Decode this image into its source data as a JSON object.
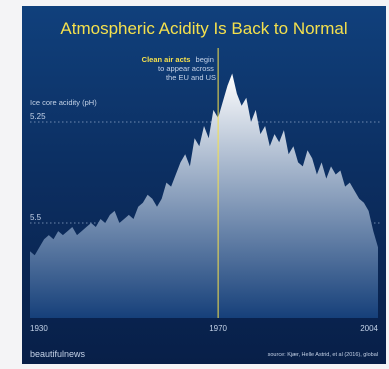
{
  "colors": {
    "title": "#f4e04d",
    "highlight": "#f4e04d",
    "text": "#c5d3e8",
    "gridline": "#8fa6c8",
    "marker_line": "#f4e04d",
    "area_top": "#ffffff",
    "area_bottom": "#16407a"
  },
  "chart_data": {
    "type": "area",
    "title": "Atmospheric Acidity Is Back to Normal",
    "ylabel": "Ice core acidity (pH)",
    "x_ticks": [
      "1930",
      "1970",
      "2004"
    ],
    "y_ticks": [
      "5.25",
      "5.5"
    ],
    "y_axis": "inverted",
    "xlim": [
      1930,
      2004
    ],
    "ylim": [
      5.25,
      5.5
    ],
    "grid": "horizontal-dotted",
    "annotation": {
      "x": 1970,
      "highlight": "Clean air acts",
      "text_line1": "begin",
      "text_line2": "to appear across",
      "text_line3": "the EU and US"
    },
    "x": [
      1930,
      1931,
      1932,
      1933,
      1934,
      1935,
      1936,
      1937,
      1938,
      1939,
      1940,
      1941,
      1942,
      1943,
      1944,
      1945,
      1946,
      1947,
      1948,
      1949,
      1950,
      1951,
      1952,
      1953,
      1954,
      1955,
      1956,
      1957,
      1958,
      1959,
      1960,
      1961,
      1962,
      1963,
      1964,
      1965,
      1966,
      1967,
      1968,
      1969,
      1970,
      1971,
      1972,
      1973,
      1974,
      1975,
      1976,
      1977,
      1978,
      1979,
      1980,
      1981,
      1982,
      1983,
      1984,
      1985,
      1986,
      1987,
      1988,
      1989,
      1990,
      1991,
      1992,
      1993,
      1994,
      1995,
      1996,
      1997,
      1998,
      1999,
      2000,
      2001,
      2002,
      2003,
      2004
    ],
    "values": [
      5.57,
      5.58,
      5.56,
      5.54,
      5.53,
      5.54,
      5.52,
      5.53,
      5.52,
      5.51,
      5.53,
      5.52,
      5.51,
      5.5,
      5.51,
      5.49,
      5.5,
      5.48,
      5.47,
      5.5,
      5.49,
      5.48,
      5.49,
      5.46,
      5.45,
      5.43,
      5.44,
      5.46,
      5.44,
      5.4,
      5.41,
      5.38,
      5.35,
      5.33,
      5.36,
      5.29,
      5.31,
      5.26,
      5.29,
      5.22,
      5.24,
      5.2,
      5.16,
      5.13,
      5.18,
      5.21,
      5.19,
      5.25,
      5.22,
      5.28,
      5.26,
      5.31,
      5.28,
      5.3,
      5.27,
      5.33,
      5.31,
      5.35,
      5.36,
      5.32,
      5.34,
      5.38,
      5.35,
      5.39,
      5.36,
      5.38,
      5.37,
      5.41,
      5.4,
      5.42,
      5.44,
      5.45,
      5.47,
      5.52,
      5.56
    ]
  },
  "footer": {
    "brand": "beautifulnews",
    "source": "source: Kjær, Helle Astrid, et al (2016), global"
  }
}
